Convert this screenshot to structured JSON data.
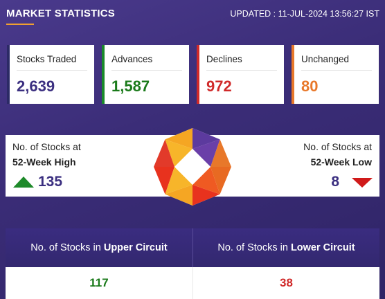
{
  "header": {
    "title": "MARKET STATISTICS",
    "updated": "UPDATED : 11-JUL-2024 13:56:27 IST"
  },
  "cards": [
    {
      "label": "Stocks Traded",
      "value": "2,639"
    },
    {
      "label": "Advances",
      "value": "1,587"
    },
    {
      "label": "Declines",
      "value": "972"
    },
    {
      "label": "Unchanged",
      "value": "80"
    }
  ],
  "week": {
    "high_line1": "No. of Stocks at",
    "high_line2": "52-Week High",
    "high_value": "135",
    "low_line1": "No. of Stocks at",
    "low_line2": "52-Week Low",
    "low_value": "8",
    "up_icon": "triangle-up-icon",
    "down_icon": "triangle-down-icon",
    "logo_icon": "octagon-logo-icon"
  },
  "circuit": {
    "upper_prefix": "No. of Stocks in",
    "upper_bold": "Upper Circuit",
    "lower_prefix": "No. of Stocks in",
    "lower_bold": "Lower Circuit",
    "upper_value": "117",
    "lower_value": "38"
  },
  "colors": {
    "background": "#3b2d78",
    "accent": "#f0a030",
    "advances": "#1a7a1a",
    "declines": "#d02a2a",
    "unchanged": "#e8782a",
    "primary_value": "#3b2f80"
  }
}
